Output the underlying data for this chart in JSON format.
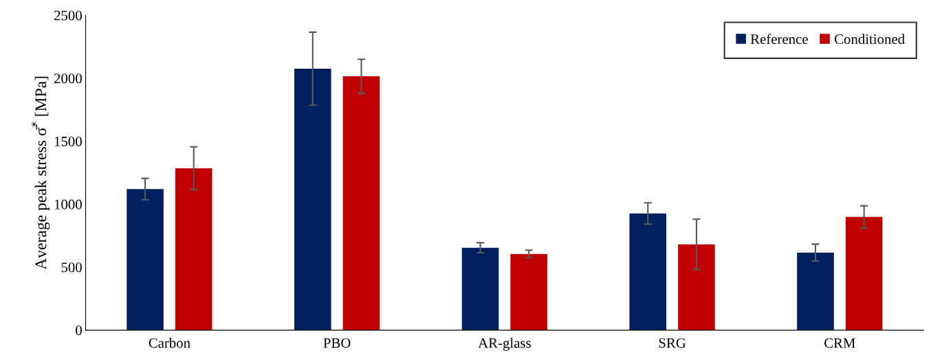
{
  "chart_data": {
    "type": "bar",
    "ylabel": "Average peak stress σ̄$^{*}$ [MPa]",
    "categories": [
      "Carbon",
      "PBO",
      "AR-glass",
      "SRG",
      "CRM"
    ],
    "series": [
      {
        "name": "Reference",
        "color": "#002060",
        "values": [
          1120,
          2075,
          654,
          926,
          615
        ],
        "errors": [
          85,
          290,
          40,
          85,
          68
        ]
      },
      {
        "name": "Conditioned",
        "color": "#c00000",
        "values": [
          1285,
          2015,
          605,
          681,
          899
        ],
        "errors": [
          170,
          135,
          30,
          200,
          88
        ]
      }
    ],
    "ylim": [
      0,
      2500
    ],
    "yticks": [
      0,
      500,
      1000,
      1500,
      2000,
      2500
    ],
    "grid": false,
    "legend": "top right"
  }
}
